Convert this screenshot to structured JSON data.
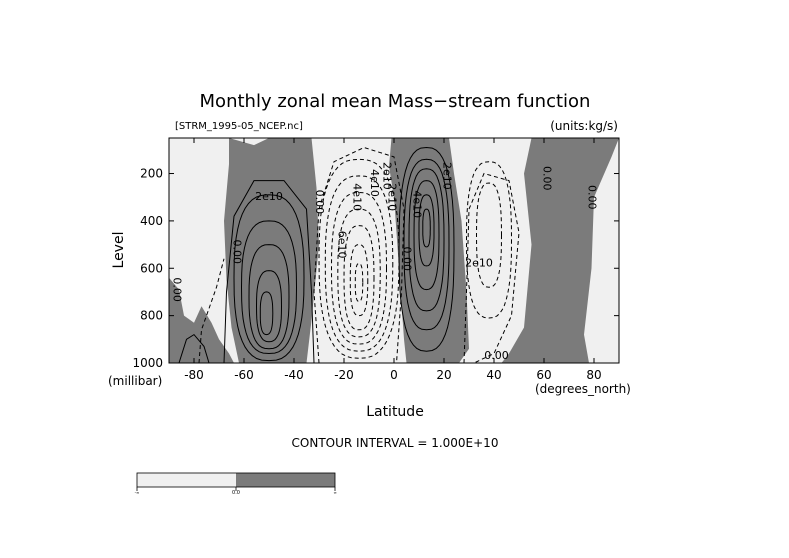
{
  "colors": {
    "negative_fill": "#f0f0f0",
    "positive_fill": "#7b7b7b",
    "background": "#ffffff",
    "line": "#000000"
  },
  "chart_data": {
    "type": "contour",
    "title": "Monthly zonal mean Mass−stream function",
    "source_label": "[STRM_1995-05_NCEP.nc]",
    "units_label": "(units:kg/s)",
    "xlabel": "Latitude",
    "x_units_label": "(degrees_north)",
    "ylabel": "Level",
    "y_units_label": "(millibar)",
    "xlim": [
      -90,
      90
    ],
    "ylim": [
      1000,
      50
    ],
    "x_ticks": [
      -80,
      -60,
      -40,
      -20,
      0,
      20,
      40,
      60,
      80
    ],
    "y_ticks": [
      200,
      400,
      600,
      800,
      1000
    ],
    "contour_interval_text": "CONTOUR INTERVAL = 1.000E+10",
    "contour_interval": 10000000000,
    "negative_contours": "dashed",
    "positive_contours": "solid",
    "fill_split": 0.0,
    "colorbar": {
      "labels": [
        "-∞",
        "0.0",
        "∞"
      ]
    },
    "contour_labels": [
      {
        "text": "2e10",
        "lat": -50,
        "lev": 300
      },
      {
        "text": "0.00",
        "lat": -63,
        "lev": 530
      },
      {
        "text": "0.00",
        "lat": -87,
        "lev": 690
      },
      {
        "text": "0.00",
        "lat": -30,
        "lev": 320
      },
      {
        "text": "6e10",
        "lat": -21,
        "lev": 500
      },
      {
        "text": "4e10",
        "lat": -15,
        "lev": 300
      },
      {
        "text": "4e10",
        "lat": -8,
        "lev": 240
      },
      {
        "text": "2e10",
        "lat": -3,
        "lev": 210
      },
      {
        "text": "2e10",
        "lat": -1,
        "lev": 300
      },
      {
        "text": "0.00",
        "lat": 5,
        "lev": 560
      },
      {
        "text": "4e10",
        "lat": 9,
        "lev": 330
      },
      {
        "text": "2e10",
        "lat": 21,
        "lev": 210
      },
      {
        "text": "2e10",
        "lat": 34,
        "lev": 580
      },
      {
        "text": "0.00",
        "lat": 41,
        "lev": 970
      },
      {
        "text": "0.00",
        "lat": 61,
        "lev": 220
      },
      {
        "text": "0.00",
        "lat": 79,
        "lev": 300
      }
    ],
    "cells": [
      {
        "sign": "positive",
        "center_lat": -50,
        "center_lev": 750,
        "peak": "4e10"
      },
      {
        "sign": "negative",
        "center_lat": -14,
        "center_lev": 550,
        "peak": "9e10"
      },
      {
        "sign": "positive",
        "center_lat": 13,
        "center_lev": 420,
        "peak": "5e10"
      },
      {
        "sign": "negative",
        "center_lat": 38,
        "center_lev": 450,
        "peak": "2e10"
      }
    ]
  }
}
